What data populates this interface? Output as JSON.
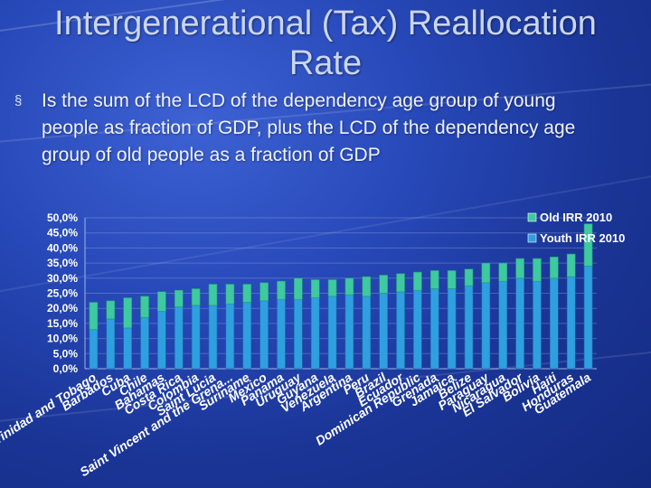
{
  "slide": {
    "title": "Intergenerational (Tax) Reallocation Rate",
    "bullet_marker": "§",
    "bullet": "Is the sum of the LCD of the dependency age group of young people as fraction of GDP, plus the LCD of the dependency age group of old people as a fraction of GDP"
  },
  "chart_data": {
    "type": "bar",
    "stacked": true,
    "yticks": [
      "0,0%",
      "5,0%",
      "10,0%",
      "15,0%",
      "20,0%",
      "25,0%",
      "30,0%",
      "35,0%",
      "40,0%",
      "45,0%",
      "50,0%"
    ],
    "ylim": [
      0,
      0.5
    ],
    "legend_position": "top-right",
    "categories": [
      "Trinidad and Tobago",
      "Barbados",
      "Cuba",
      "Chile",
      "Bahamas",
      "Costa Rica",
      "Colombia",
      "Saint Lucia",
      "Saint Vincent and the Grena...",
      "Suriname",
      "Mexico",
      "Panama",
      "Uruguay",
      "Guyana",
      "Venezuela",
      "Argentina",
      "Peru",
      "Brazil",
      "Ecuador",
      "Dominican Republic",
      "Grenada",
      "Jamaica",
      "Belize",
      "Paraguay",
      "Nicaragua",
      "El Salvador",
      "Bolivia",
      "Haiti",
      "Honduras",
      "Guatemala"
    ],
    "series": [
      {
        "name": "Youth IRR 2010",
        "color": "#2f9fe0",
        "values": [
          0.13,
          0.165,
          0.135,
          0.17,
          0.19,
          0.205,
          0.21,
          0.21,
          0.215,
          0.22,
          0.225,
          0.23,
          0.23,
          0.235,
          0.24,
          0.245,
          0.24,
          0.25,
          0.255,
          0.26,
          0.265,
          0.265,
          0.275,
          0.285,
          0.29,
          0.3,
          0.29,
          0.3,
          0.305,
          0.34
        ]
      },
      {
        "name": "Old IRR 2010",
        "color": "#3ec9a0",
        "values": [
          0.09,
          0.06,
          0.1,
          0.07,
          0.065,
          0.055,
          0.055,
          0.07,
          0.065,
          0.06,
          0.06,
          0.06,
          0.07,
          0.06,
          0.055,
          0.055,
          0.065,
          0.06,
          0.06,
          0.06,
          0.06,
          0.06,
          0.055,
          0.065,
          0.06,
          0.065,
          0.075,
          0.07,
          0.075,
          0.14
        ]
      }
    ]
  }
}
